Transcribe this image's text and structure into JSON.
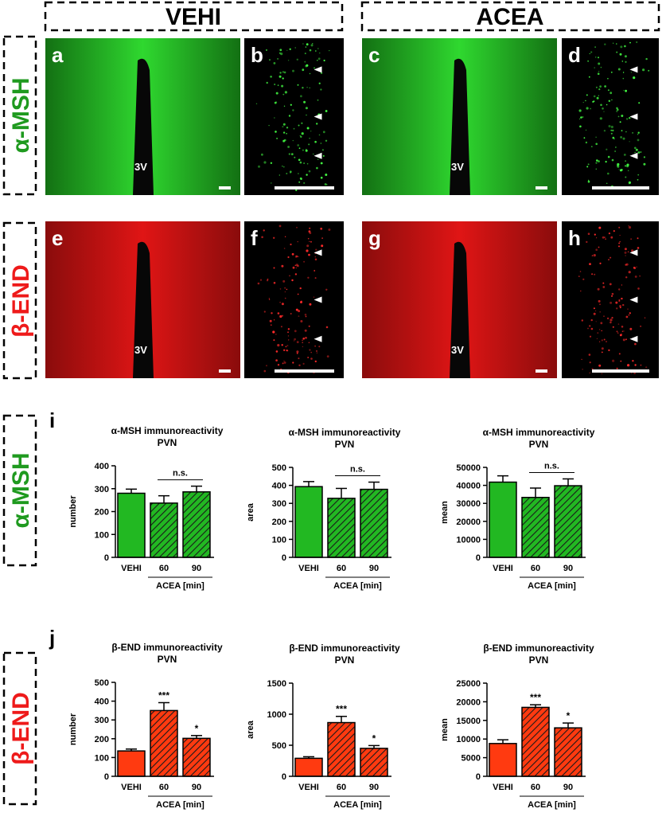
{
  "column_headers": [
    "VEHI",
    "ACEA"
  ],
  "row_labels": [
    "α-MSH",
    "β-END",
    "α-MSH",
    "β-END"
  ],
  "micrographs": [
    {
      "letter": "a",
      "landmark": "3V"
    },
    {
      "letter": "b"
    },
    {
      "letter": "c",
      "landmark": "3V"
    },
    {
      "letter": "d"
    },
    {
      "letter": "e",
      "landmark": "3V"
    },
    {
      "letter": "f"
    },
    {
      "letter": "g",
      "landmark": "3V"
    },
    {
      "letter": "h"
    }
  ],
  "chart_letters": [
    "i",
    "j"
  ],
  "chart_data": [
    {
      "type": "bar",
      "title": "α-MSH immunoreactivity",
      "subtitle": "PVN",
      "y_label": "number",
      "categories": [
        "VEHI",
        "60",
        "90"
      ],
      "group_label": "ACEA [min]",
      "color": "#22b822",
      "hatched": [
        false,
        true,
        true
      ],
      "values": [
        280,
        237,
        286
      ],
      "errors": [
        18,
        32,
        25
      ],
      "ylim": [
        0,
        400
      ],
      "yticks": [
        0,
        100,
        200,
        300,
        400
      ],
      "annotations": [
        {
          "from": 1,
          "to": 2,
          "label": "n.s."
        }
      ]
    },
    {
      "type": "bar",
      "title": "α-MSH immunoreactivity",
      "subtitle": "PVN",
      "y_label": "area",
      "categories": [
        "VEHI",
        "60",
        "90"
      ],
      "group_label": "ACEA [min]",
      "color": "#22b822",
      "hatched": [
        false,
        true,
        true
      ],
      "values": [
        393,
        328,
        378
      ],
      "errors": [
        28,
        55,
        40
      ],
      "ylim": [
        0,
        500
      ],
      "yticks": [
        0,
        100,
        200,
        300,
        400,
        500
      ],
      "annotations": [
        {
          "from": 1,
          "to": 2,
          "label": "n.s."
        }
      ]
    },
    {
      "type": "bar",
      "title": "α-MSH immunoreactivity",
      "subtitle": "PVN",
      "y_label": "mean",
      "categories": [
        "VEHI",
        "60",
        "90"
      ],
      "group_label": "ACEA [min]",
      "color": "#22b822",
      "hatched": [
        false,
        true,
        true
      ],
      "values": [
        41800,
        33300,
        39800
      ],
      "errors": [
        3500,
        5200,
        3800
      ],
      "ylim": [
        0,
        50000
      ],
      "yticks": [
        0,
        10000,
        20000,
        30000,
        40000,
        50000
      ],
      "annotations": [
        {
          "from": 1,
          "to": 2,
          "label": "n.s."
        }
      ]
    },
    {
      "type": "bar",
      "title": "β-END immunoreactivity",
      "subtitle": "PVN",
      "y_label": "number",
      "categories": [
        "VEHI",
        "60",
        "90"
      ],
      "group_label": "ACEA [min]",
      "color": "#ff3a10",
      "hatched": [
        false,
        true,
        true
      ],
      "values": [
        135,
        350,
        202
      ],
      "errors": [
        10,
        42,
        15
      ],
      "ylim": [
        0,
        500
      ],
      "yticks": [
        0,
        100,
        200,
        300,
        400,
        500
      ],
      "annotations": [
        {
          "from": 1,
          "to": 1,
          "label": "***"
        },
        {
          "from": 2,
          "to": 2,
          "label": "*"
        }
      ]
    },
    {
      "type": "bar",
      "title": "β-END immunoreactivity",
      "subtitle": "PVN",
      "y_label": "area",
      "categories": [
        "VEHI",
        "60",
        "90"
      ],
      "group_label": "ACEA [min]",
      "color": "#ff3a10",
      "hatched": [
        false,
        true,
        true
      ],
      "values": [
        290,
        865,
        450
      ],
      "errors": [
        25,
        100,
        45
      ],
      "ylim": [
        0,
        1500
      ],
      "yticks": [
        0,
        500,
        1000,
        1500
      ],
      "annotations": [
        {
          "from": 1,
          "to": 1,
          "label": "***"
        },
        {
          "from": 2,
          "to": 2,
          "label": "*"
        }
      ]
    },
    {
      "type": "bar",
      "title": "β-END immunoreactivity",
      "subtitle": "PVN",
      "y_label": "mean",
      "categories": [
        "VEHI",
        "60",
        "90"
      ],
      "group_label": "ACEA [min]",
      "color": "#ff3a10",
      "hatched": [
        false,
        true,
        true
      ],
      "values": [
        8800,
        18500,
        13000
      ],
      "errors": [
        1000,
        700,
        1300
      ],
      "ylim": [
        0,
        25000
      ],
      "yticks": [
        0,
        5000,
        10000,
        15000,
        20000,
        25000
      ],
      "annotations": [
        {
          "from": 1,
          "to": 1,
          "label": "***"
        },
        {
          "from": 2,
          "to": 2,
          "label": "*"
        }
      ]
    }
  ]
}
